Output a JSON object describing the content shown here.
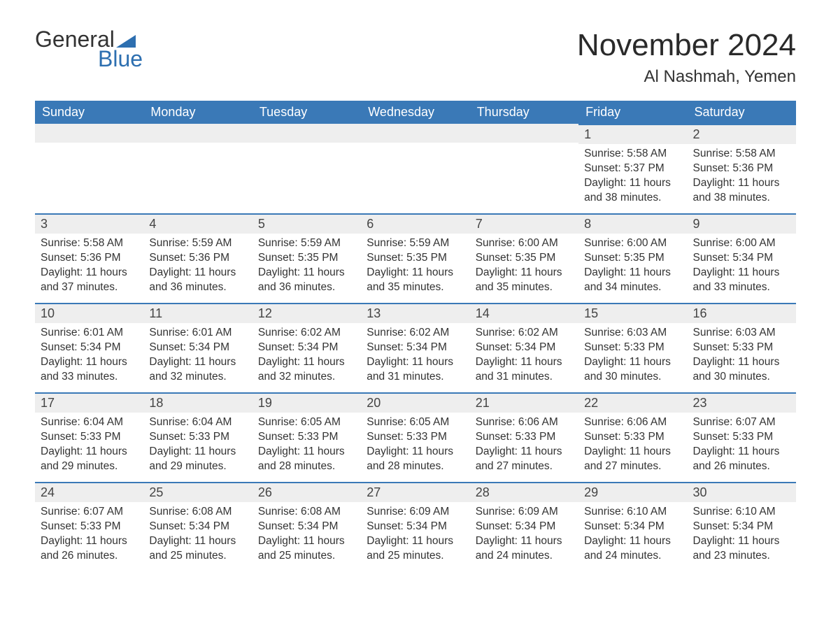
{
  "logo": {
    "word1": "General",
    "word2": "Blue"
  },
  "title": "November 2024",
  "location": "Al Nashmah, Yemen",
  "colors": {
    "header_bg": "#3a79b7",
    "header_text": "#ffffff",
    "accent_border": "#3a79b7",
    "daynum_bg": "#eeeeee",
    "body_text": "#333333",
    "page_bg": "#ffffff"
  },
  "day_names": [
    "Sunday",
    "Monday",
    "Tuesday",
    "Wednesday",
    "Thursday",
    "Friday",
    "Saturday"
  ],
  "first_weekday_index": 5,
  "days": [
    {
      "n": 1,
      "sr": "5:58 AM",
      "ss": "5:37 PM",
      "dl": "11 hours and 38 minutes."
    },
    {
      "n": 2,
      "sr": "5:58 AM",
      "ss": "5:36 PM",
      "dl": "11 hours and 38 minutes."
    },
    {
      "n": 3,
      "sr": "5:58 AM",
      "ss": "5:36 PM",
      "dl": "11 hours and 37 minutes."
    },
    {
      "n": 4,
      "sr": "5:59 AM",
      "ss": "5:36 PM",
      "dl": "11 hours and 36 minutes."
    },
    {
      "n": 5,
      "sr": "5:59 AM",
      "ss": "5:35 PM",
      "dl": "11 hours and 36 minutes."
    },
    {
      "n": 6,
      "sr": "5:59 AM",
      "ss": "5:35 PM",
      "dl": "11 hours and 35 minutes."
    },
    {
      "n": 7,
      "sr": "6:00 AM",
      "ss": "5:35 PM",
      "dl": "11 hours and 35 minutes."
    },
    {
      "n": 8,
      "sr": "6:00 AM",
      "ss": "5:35 PM",
      "dl": "11 hours and 34 minutes."
    },
    {
      "n": 9,
      "sr": "6:00 AM",
      "ss": "5:34 PM",
      "dl": "11 hours and 33 minutes."
    },
    {
      "n": 10,
      "sr": "6:01 AM",
      "ss": "5:34 PM",
      "dl": "11 hours and 33 minutes."
    },
    {
      "n": 11,
      "sr": "6:01 AM",
      "ss": "5:34 PM",
      "dl": "11 hours and 32 minutes."
    },
    {
      "n": 12,
      "sr": "6:02 AM",
      "ss": "5:34 PM",
      "dl": "11 hours and 32 minutes."
    },
    {
      "n": 13,
      "sr": "6:02 AM",
      "ss": "5:34 PM",
      "dl": "11 hours and 31 minutes."
    },
    {
      "n": 14,
      "sr": "6:02 AM",
      "ss": "5:34 PM",
      "dl": "11 hours and 31 minutes."
    },
    {
      "n": 15,
      "sr": "6:03 AM",
      "ss": "5:33 PM",
      "dl": "11 hours and 30 minutes."
    },
    {
      "n": 16,
      "sr": "6:03 AM",
      "ss": "5:33 PM",
      "dl": "11 hours and 30 minutes."
    },
    {
      "n": 17,
      "sr": "6:04 AM",
      "ss": "5:33 PM",
      "dl": "11 hours and 29 minutes."
    },
    {
      "n": 18,
      "sr": "6:04 AM",
      "ss": "5:33 PM",
      "dl": "11 hours and 29 minutes."
    },
    {
      "n": 19,
      "sr": "6:05 AM",
      "ss": "5:33 PM",
      "dl": "11 hours and 28 minutes."
    },
    {
      "n": 20,
      "sr": "6:05 AM",
      "ss": "5:33 PM",
      "dl": "11 hours and 28 minutes."
    },
    {
      "n": 21,
      "sr": "6:06 AM",
      "ss": "5:33 PM",
      "dl": "11 hours and 27 minutes."
    },
    {
      "n": 22,
      "sr": "6:06 AM",
      "ss": "5:33 PM",
      "dl": "11 hours and 27 minutes."
    },
    {
      "n": 23,
      "sr": "6:07 AM",
      "ss": "5:33 PM",
      "dl": "11 hours and 26 minutes."
    },
    {
      "n": 24,
      "sr": "6:07 AM",
      "ss": "5:33 PM",
      "dl": "11 hours and 26 minutes."
    },
    {
      "n": 25,
      "sr": "6:08 AM",
      "ss": "5:34 PM",
      "dl": "11 hours and 25 minutes."
    },
    {
      "n": 26,
      "sr": "6:08 AM",
      "ss": "5:34 PM",
      "dl": "11 hours and 25 minutes."
    },
    {
      "n": 27,
      "sr": "6:09 AM",
      "ss": "5:34 PM",
      "dl": "11 hours and 25 minutes."
    },
    {
      "n": 28,
      "sr": "6:09 AM",
      "ss": "5:34 PM",
      "dl": "11 hours and 24 minutes."
    },
    {
      "n": 29,
      "sr": "6:10 AM",
      "ss": "5:34 PM",
      "dl": "11 hours and 24 minutes."
    },
    {
      "n": 30,
      "sr": "6:10 AM",
      "ss": "5:34 PM",
      "dl": "11 hours and 23 minutes."
    }
  ],
  "labels": {
    "sunrise": "Sunrise: ",
    "sunset": "Sunset: ",
    "daylight": "Daylight: "
  },
  "typography": {
    "title_fontsize": 44,
    "location_fontsize": 24,
    "header_fontsize": 18,
    "daynum_fontsize": 18,
    "body_fontsize": 15.5,
    "font_family": "Arial"
  }
}
